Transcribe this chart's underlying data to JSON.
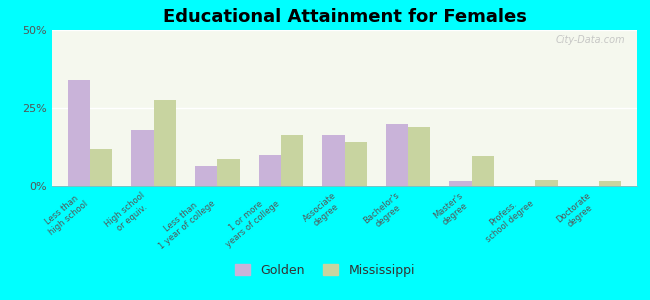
{
  "title": "Educational Attainment for Females",
  "categories": [
    "Less than\nhigh school",
    "High school\nor equiv.",
    "Less than\n1 year of college",
    "1 or more\nyears of college",
    "Associate\ndegree",
    "Bachelor's\ndegree",
    "Master's\ndegree",
    "Profess.\nschool degree",
    "Doctorate\ndegree"
  ],
  "golden_values": [
    34.0,
    18.0,
    6.5,
    10.0,
    16.5,
    20.0,
    1.5,
    0.0,
    0.0
  ],
  "mississippi_values": [
    12.0,
    27.5,
    8.5,
    16.5,
    14.0,
    19.0,
    9.5,
    2.0,
    1.5
  ],
  "golden_color": "#c9b3d9",
  "mississippi_color": "#c8d4a0",
  "background_color": "#00ffff",
  "plot_bg_color": "#f5f8ee",
  "ylim": [
    0,
    50
  ],
  "yticks": [
    0,
    25,
    50
  ],
  "ytick_labels": [
    "0%",
    "25%",
    "50%"
  ],
  "legend_golden": "Golden",
  "legend_mississippi": "Mississippi",
  "title_fontsize": 13,
  "bar_width": 0.35
}
